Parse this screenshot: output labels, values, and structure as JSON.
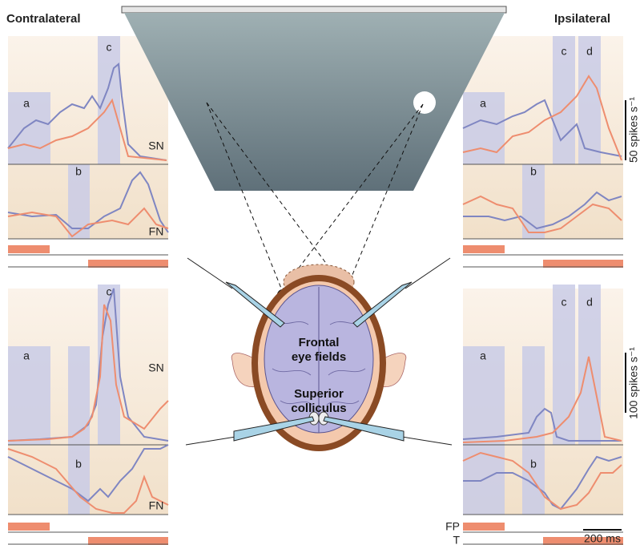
{
  "headers": {
    "left": "Contralateral",
    "right": "Ipsilateral"
  },
  "panels": [
    {
      "labels": [
        "a",
        "b",
        "c"
      ],
      "tracks": [
        "SN",
        "FN"
      ]
    },
    {
      "labels": [
        "a",
        "b",
        "c",
        "d"
      ]
    },
    {
      "labels": [
        "a",
        "b",
        "c"
      ],
      "tracks": [
        "SN",
        "FN"
      ]
    },
    {
      "labels": [
        "a",
        "b",
        "c",
        "d"
      ]
    }
  ],
  "brain": {
    "upper": [
      "Frontal",
      "eye fields"
    ],
    "lower": [
      "Superior",
      "colliculus"
    ]
  },
  "scale": {
    "top": "50 spikes s⁻¹",
    "bottom": "100 spikes s⁻¹",
    "time": "200 ms"
  },
  "timing": {
    "fixation": "FP",
    "target": "T"
  }
}
